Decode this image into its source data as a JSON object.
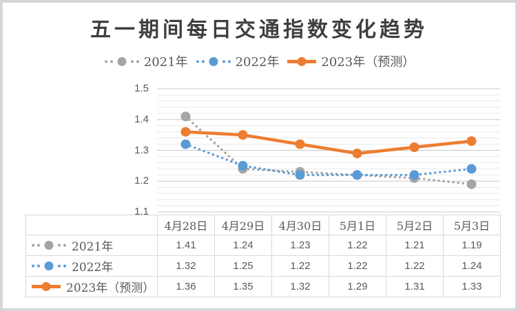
{
  "frame": {
    "background": "#ffffff",
    "border_color": "#d6d6d6"
  },
  "chart_data": {
    "type": "line",
    "title": "五一期间每日交通指数变化趋势",
    "categories": [
      "4月28日",
      "4月29日",
      "4月30日",
      "5月1日",
      "5月2日",
      "5月3日"
    ],
    "series": [
      {
        "name": "2021年",
        "values": [
          1.41,
          1.24,
          1.23,
          1.22,
          1.21,
          1.19
        ],
        "color": "#A5A5A5",
        "line_style": "dotted",
        "marker": "circle"
      },
      {
        "name": "2022年",
        "values": [
          1.32,
          1.25,
          1.22,
          1.22,
          1.22,
          1.24
        ],
        "color": "#5B9BD5",
        "line_style": "dotted",
        "marker": "circle"
      },
      {
        "name": "2023年（预测）",
        "values": [
          1.36,
          1.35,
          1.32,
          1.29,
          1.31,
          1.33
        ],
        "color": "#ED7D31",
        "line_style": "solid",
        "marker": "circle"
      }
    ],
    "ylim": [
      1.1,
      1.5
    ],
    "y_major_unit": 0.1,
    "y_minor_unit": 0.02,
    "y_tick_labels": [
      "1.5",
      "1.4",
      "1.3",
      "1.2",
      "1.1"
    ],
    "grid": "horizontal major + minor",
    "legend_position": "top",
    "show_data_table": true,
    "value_decimals": 2,
    "title_color": "#3f3f3f",
    "axis_text_color": "#595959",
    "major_grid_color": "#c9c9c9",
    "minor_grid_color": "#e8e8e8",
    "table_border_color": "#d9d9d9"
  }
}
